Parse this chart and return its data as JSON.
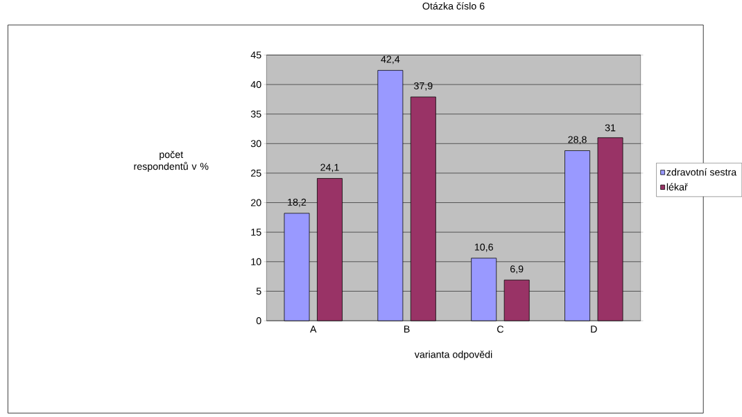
{
  "chart_data": {
    "type": "bar",
    "title": "Otázka číslo 6",
    "xlabel": "varianta odpovědi",
    "ylabel": "počet respondentů v %",
    "categories": [
      "A",
      "B",
      "C",
      "D"
    ],
    "series": [
      {
        "name": "zdravotní sestra",
        "color": "#9999ff",
        "values": [
          18.2,
          42.4,
          10.6,
          28.8
        ],
        "value_labels": [
          "18,2",
          "42,4",
          "10,6",
          "28,8"
        ]
      },
      {
        "name": "lékař",
        "color": "#993366",
        "values": [
          24.1,
          37.9,
          6.9,
          31
        ],
        "value_labels": [
          "24,1",
          "37,9",
          "6,9",
          "31"
        ]
      }
    ],
    "ylim": [
      0,
      45
    ],
    "yticks": [
      0,
      5,
      10,
      15,
      20,
      25,
      30,
      35,
      40,
      45
    ],
    "grid": "y",
    "legend": "right"
  }
}
